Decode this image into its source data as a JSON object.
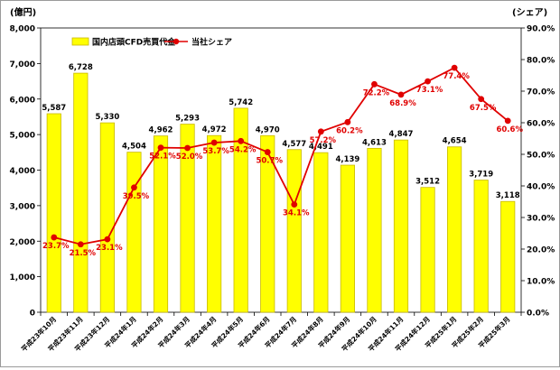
{
  "chart_data": {
    "type": "bar",
    "left_unit": "(億円)",
    "right_unit": "(シェア)",
    "categories": [
      "平成23年10月",
      "平成23年11月",
      "平成23年12月",
      "平成24年1月",
      "平成24年2月",
      "平成24年3月",
      "平成24年4月",
      "平成24年5月",
      "平成24年6月",
      "平成24年7月",
      "平成24年8月",
      "平成24年9月",
      "平成24年10月",
      "平成24年11月",
      "平成24年12月",
      "平成25年1月",
      "平成25年2月",
      "平成25年3月"
    ],
    "left_axis": {
      "min": 0,
      "max": 8000,
      "step": 1000,
      "ticks": [
        "0",
        "1,000",
        "2,000",
        "3,000",
        "4,000",
        "5,000",
        "6,000",
        "7,000",
        "8,000"
      ]
    },
    "right_axis": {
      "min": 0,
      "max": 90,
      "step": 10,
      "ticks": [
        "0.0%",
        "10.0%",
        "20.0%",
        "30.0%",
        "40.0%",
        "50.0%",
        "60.0%",
        "70.0%",
        "80.0%",
        "90.0%"
      ]
    },
    "series": [
      {
        "name": "国内店頭CFD売買代金",
        "kind": "bar",
        "axis": "left",
        "color": "#FFFF00",
        "edge_color": "#C9B800",
        "values": [
          5587,
          6728,
          5330,
          4504,
          4962,
          5293,
          4972,
          5742,
          4970,
          4577,
          4491,
          4139,
          4613,
          4847,
          3512,
          4654,
          3719,
          3118
        ],
        "labels": [
          "5,587",
          "6,728",
          "5,330",
          "4,504",
          "4,962",
          "5,293",
          "4,972",
          "5,742",
          "4,970",
          "4,577",
          "4,491",
          "4,139",
          "4,613",
          "4,847",
          "3,512",
          "4,654",
          "3,719",
          "3,118"
        ]
      },
      {
        "name": "当社シェア",
        "kind": "line",
        "axis": "right",
        "color": "#E00000",
        "values": [
          23.7,
          21.5,
          23.1,
          39.5,
          52.1,
          52.0,
          53.7,
          54.2,
          50.7,
          34.1,
          57.2,
          60.2,
          72.2,
          68.9,
          73.1,
          77.4,
          67.5,
          60.6
        ],
        "labels": [
          "23.7%",
          "21.5%",
          "23.1%",
          "39.5%",
          "52.1%",
          "52.0%",
          "53.7%",
          "54.2%",
          "50.7%",
          "34.1%",
          "57.2%",
          "60.2%",
          "72.2%",
          "68.9%",
          "73.1%",
          "77.4%",
          "67.5%",
          "60.6%"
        ]
      }
    ],
    "legend_position": "top-left",
    "grid": false
  }
}
